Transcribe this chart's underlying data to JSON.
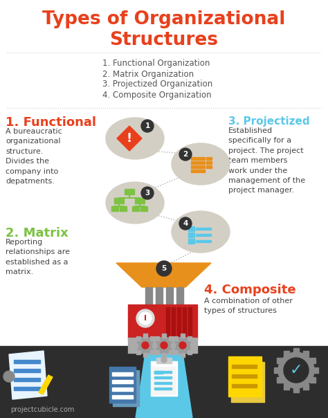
{
  "title_line1": "Types of Organizational",
  "title_line2": "Structures",
  "title_color": "#E8401C",
  "bg_color": "#FFFFFF",
  "bottom_bg_color": "#2D2D2D",
  "list_items": [
    "1. Functional Organization",
    "2. Matrix Organization",
    "3. Projectized Organization",
    "4. Composite Organization"
  ],
  "list_color": "#555555",
  "section1_title": "1. Functional",
  "section1_title_color": "#E8401C",
  "section1_text": "A bureaucratic\norganizational\nstructure.\nDivides the\ncompany into\ndepatments.",
  "section2_title": "2. Matrix",
  "section2_title_color": "#7DC242",
  "section2_text": "Reporting\nrelationships are\nestablished as a\nmatrix.",
  "section3_title": "3. Projectized",
  "section3_title_color": "#5BC8E8",
  "section3_text": "Established\nspecifically for a\nproject. The project\nteam members\nwork under the\nmanagement of the\nproject manager.",
  "section4_title": "4. Composite",
  "section4_title_color": "#E8401C",
  "section4_text": "A combination of other\ntypes of structures",
  "node_bg_color": "#D4CFC5",
  "node_num_color": "#333333",
  "node_num_text_color": "#FFFFFF",
  "dotted_line_color": "#AAAAAA",
  "icon1_color": "#E8401C",
  "icon2_color": "#E8901C",
  "icon3_color": "#7DC242",
  "icon4_color": "#5BC8E8",
  "funnel_color": "#E8901C",
  "machine_red": "#CC2222",
  "machine_gray": "#999999",
  "machine_dark_gray": "#666666",
  "beam_color": "#5BC8E8",
  "footer_text": "projectcubicle.com",
  "footer_color": "#AAAAAA"
}
